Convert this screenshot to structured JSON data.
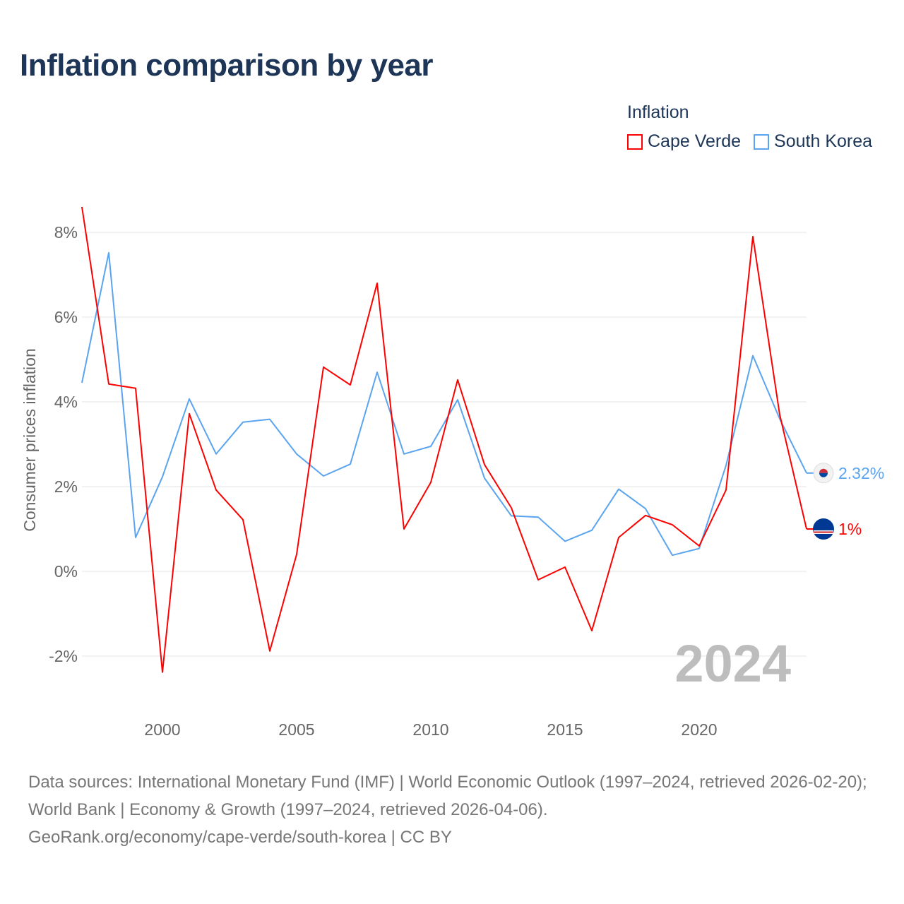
{
  "title": "Inflation comparison by year",
  "legend": {
    "title": "Inflation",
    "items": [
      {
        "label": "Cape Verde",
        "color": "#ff0000"
      },
      {
        "label": "South Korea",
        "color": "#5aa4f0"
      }
    ]
  },
  "chart_data": {
    "type": "line",
    "title": "Inflation comparison by year",
    "xlabel": "",
    "ylabel": "Consumer prices inflation",
    "xlim": [
      1997,
      2024
    ],
    "ylim": [
      -3,
      9
    ],
    "grid": true,
    "legend_position": "top-right",
    "x_ticks": [
      2000,
      2005,
      2010,
      2015,
      2020
    ],
    "x_tick_labels": [
      "2000",
      "2005",
      "2010",
      "2015",
      "2020"
    ],
    "y_ticks": [
      -2,
      0,
      2,
      4,
      6,
      8
    ],
    "y_tick_labels": [
      "-2%",
      "0%",
      "2%",
      "4%",
      "6%",
      "8%"
    ],
    "x": [
      1997,
      1998,
      1999,
      2000,
      2001,
      2002,
      2003,
      2004,
      2005,
      2006,
      2007,
      2008,
      2009,
      2010,
      2011,
      2012,
      2013,
      2014,
      2015,
      2016,
      2017,
      2018,
      2019,
      2020,
      2021,
      2022,
      2023,
      2024
    ],
    "series": [
      {
        "name": "Cape Verde",
        "color": "#ff0000",
        "end_label": "1%",
        "values": [
          8.6,
          4.42,
          4.32,
          -2.38,
          3.72,
          1.92,
          1.22,
          -1.88,
          0.4,
          4.82,
          4.4,
          6.8,
          1.0,
          2.1,
          4.52,
          2.52,
          1.5,
          -0.2,
          0.1,
          -1.4,
          0.8,
          1.32,
          1.1,
          0.6,
          1.92,
          7.9,
          3.7,
          1.0
        ]
      },
      {
        "name": "South Korea",
        "color": "#5aa4f0",
        "end_label": "2.32%",
        "values": [
          4.45,
          7.52,
          0.8,
          2.23,
          4.07,
          2.77,
          3.52,
          3.59,
          2.77,
          2.25,
          2.53,
          4.7,
          2.77,
          2.95,
          4.05,
          2.2,
          1.31,
          1.28,
          0.71,
          0.97,
          1.94,
          1.48,
          0.38,
          0.54,
          2.5,
          5.09,
          3.6,
          2.32
        ]
      }
    ],
    "watermark_year": "2024"
  },
  "footer": {
    "line1": "Data sources: International Monetary Fund (IMF) | World Economic Outlook (1997–2024, retrieved 2026-02-20); World Bank | Economy & Growth (1997–2024, retrieved 2026-04-06).",
    "line2": "GeoRank.org/economy/cape-verde/south-korea | CC BY"
  }
}
